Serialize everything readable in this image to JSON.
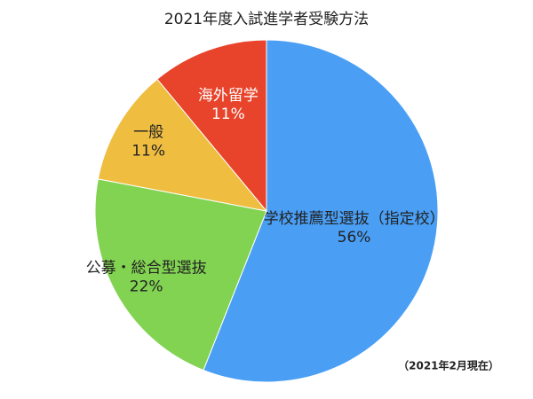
{
  "chart_data": {
    "type": "pie",
    "title": "2021年度入試進学者受験方法",
    "categories": [
      "学校推薦型選抜（指定校）",
      "公募・総合型選抜",
      "一般",
      "海外留学"
    ],
    "values": [
      56,
      22,
      11,
      11
    ],
    "value_labels": [
      "56%",
      "22%",
      "11%",
      "11%"
    ],
    "colors": [
      "#4a9ff5",
      "#82d352",
      "#efbd40",
      "#e8442b"
    ],
    "annotation": "（2021年2月現在）"
  }
}
